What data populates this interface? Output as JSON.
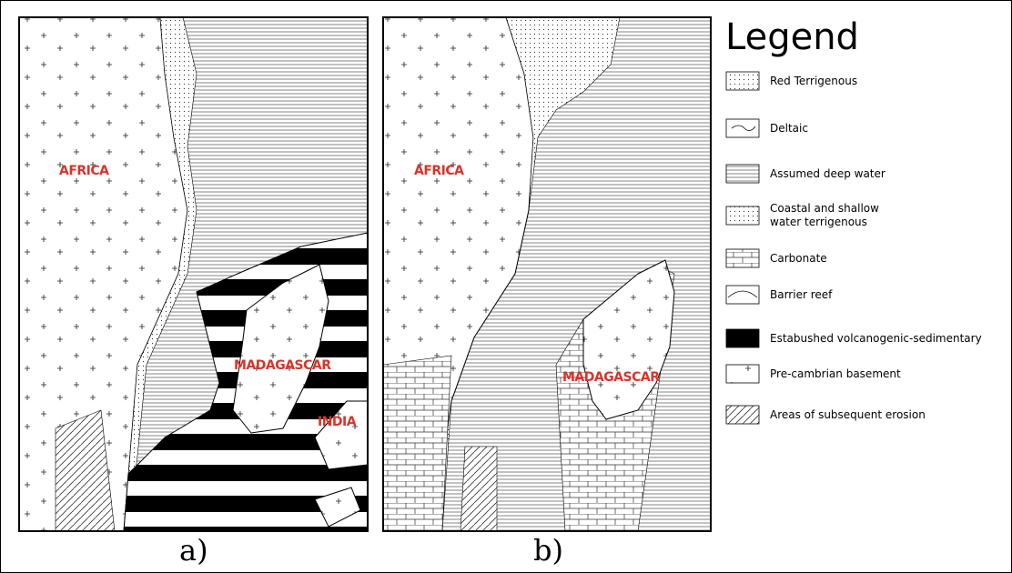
{
  "panels": [
    {
      "caption": "a)",
      "labels": [
        "AFRICA",
        "MADAGASCAR",
        "INDIA"
      ]
    },
    {
      "caption": "b)",
      "labels": [
        "AFRICA",
        "MADAGASCAR"
      ]
    }
  ],
  "legend": {
    "title": "Legend",
    "items": [
      "Red Terrigenous",
      "Deltaic",
      "Assumed deep water",
      "Coastal and shallow water terrigenous",
      "Carbonate",
      "Barrier reef",
      "Estabushed volcanogenic-sedimentary",
      "Pre-cambrian basement",
      "Areas of subsequent erosion"
    ]
  }
}
